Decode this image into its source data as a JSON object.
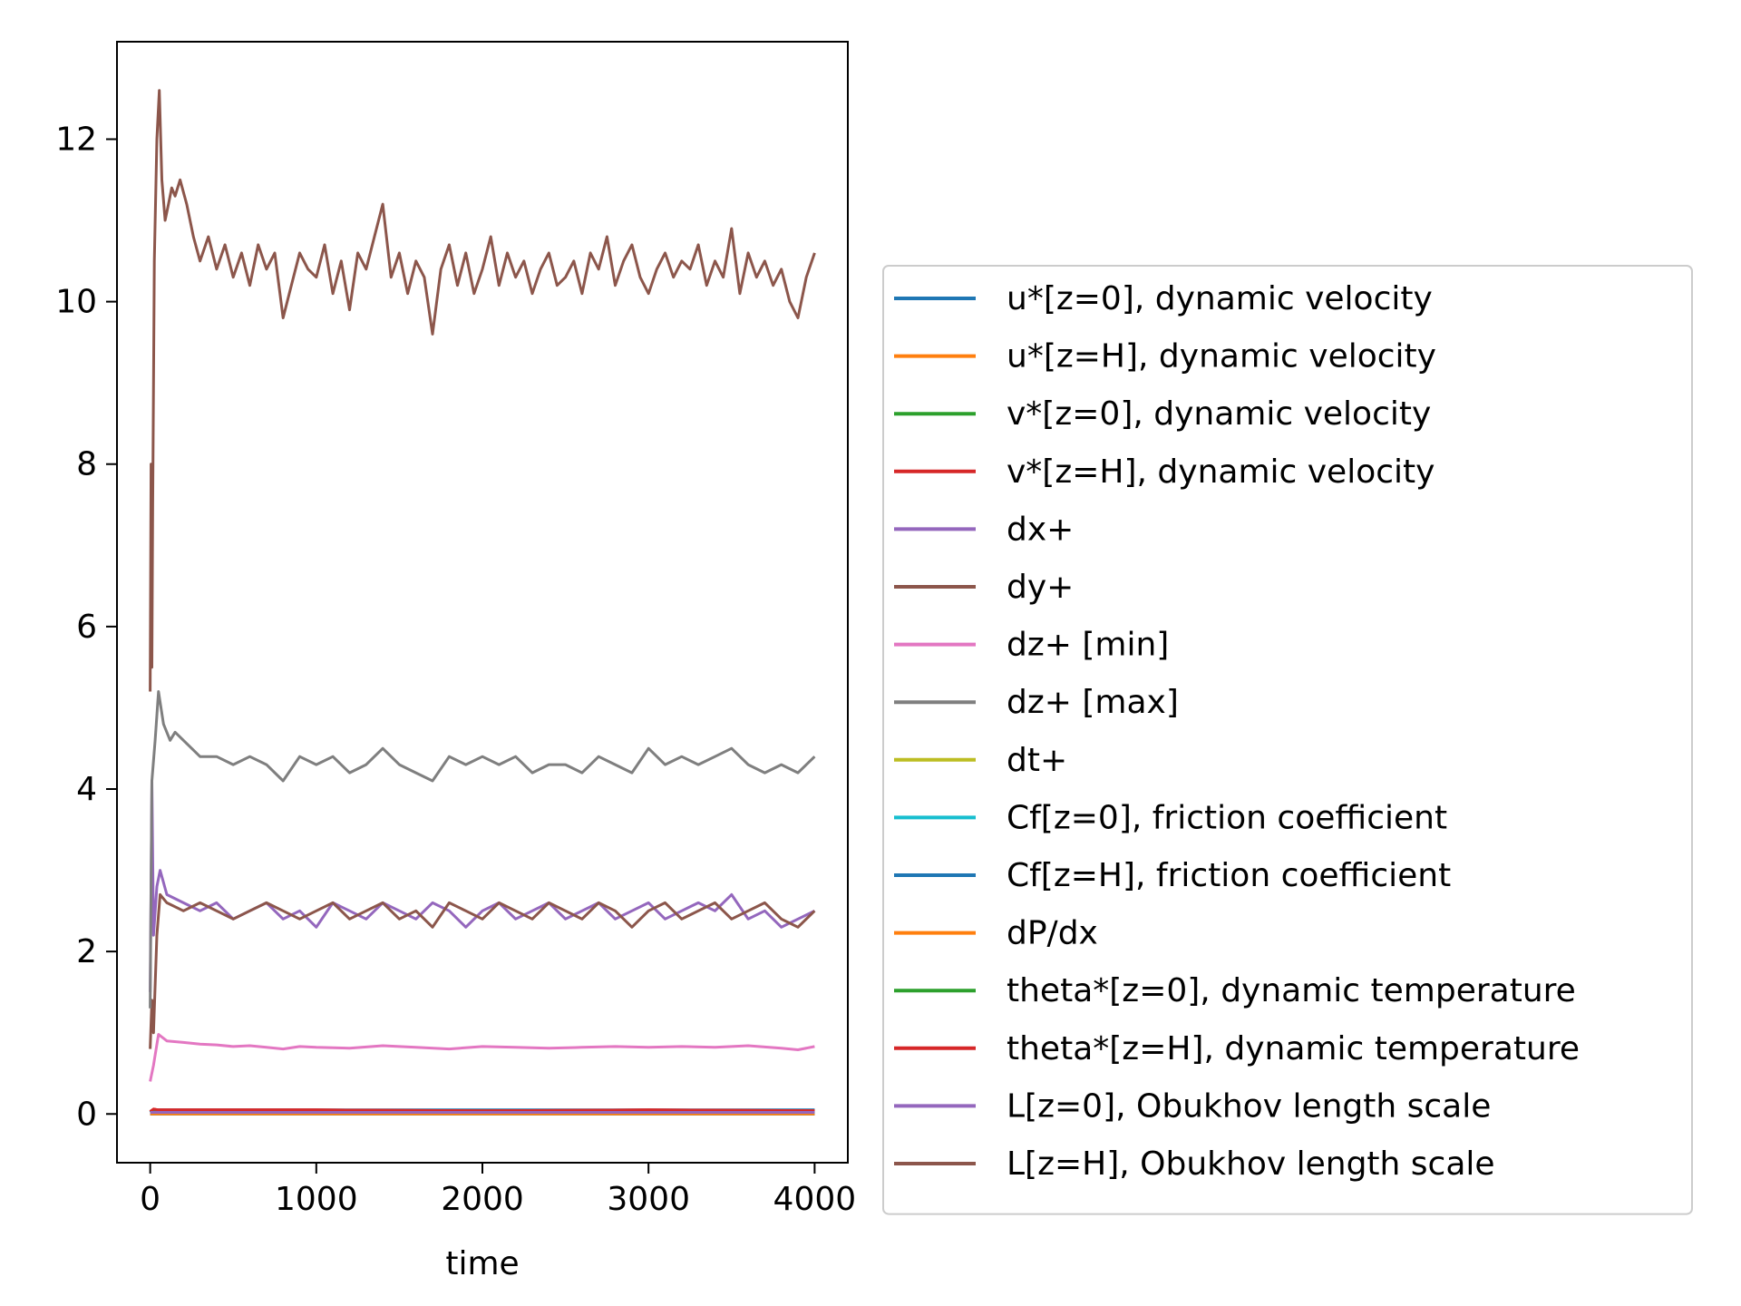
{
  "chart_data": {
    "type": "line",
    "xlabel": "time",
    "ylabel": "",
    "title": "",
    "xlim": [
      -200,
      4200
    ],
    "ylim": [
      -0.6,
      13.2
    ],
    "xticks": [
      0,
      1000,
      2000,
      3000,
      4000
    ],
    "yticks": [
      0,
      2,
      4,
      6,
      8,
      10,
      12
    ],
    "grid": false,
    "legend_position": "center-right outside",
    "series": [
      {
        "name": "u*[z=0], dynamic velocity",
        "color": "#1f77b4",
        "x": [
          0,
          20,
          50,
          500,
          1000,
          2000,
          3000,
          4000
        ],
        "y": [
          0.02,
          0.05,
          0.05,
          0.05,
          0.05,
          0.05,
          0.05,
          0.05
        ]
      },
      {
        "name": "u*[z=H], dynamic velocity",
        "color": "#ff7f0e",
        "x": [
          0,
          20,
          50,
          500,
          1000,
          2000,
          3000,
          4000
        ],
        "y": [
          0.0,
          0.0,
          0.0,
          0.0,
          0.0,
          0.0,
          0.0,
          0.0
        ]
      },
      {
        "name": "v*[z=0], dynamic velocity",
        "color": "#2ca02c",
        "x": [
          0,
          20,
          50,
          500,
          1000,
          2000,
          3000,
          4000
        ],
        "y": [
          0.02,
          0.04,
          0.04,
          0.04,
          0.04,
          0.04,
          0.04,
          0.04
        ]
      },
      {
        "name": "v*[z=H], dynamic velocity",
        "color": "#d62728",
        "x": [
          0,
          20,
          50,
          500,
          1000,
          2000,
          3000,
          4000
        ],
        "y": [
          0.03,
          0.06,
          0.05,
          0.05,
          0.05,
          0.04,
          0.05,
          0.04
        ]
      },
      {
        "name": "dx+",
        "color": "#9467bd",
        "x": [
          0,
          10,
          20,
          40,
          60,
          100,
          200,
          300,
          400,
          500,
          600,
          700,
          800,
          900,
          1000,
          1100,
          1200,
          1300,
          1400,
          1500,
          1600,
          1700,
          1800,
          1900,
          2000,
          2100,
          2200,
          2300,
          2400,
          2500,
          2600,
          2700,
          2800,
          2900,
          3000,
          3100,
          3200,
          3300,
          3400,
          3500,
          3600,
          3700,
          3800,
          3900,
          4000
        ],
        "y": [
          1.5,
          4.1,
          2.2,
          2.8,
          3.0,
          2.7,
          2.6,
          2.5,
          2.6,
          2.4,
          2.5,
          2.6,
          2.4,
          2.5,
          2.3,
          2.6,
          2.5,
          2.4,
          2.6,
          2.5,
          2.4,
          2.6,
          2.5,
          2.3,
          2.5,
          2.6,
          2.4,
          2.5,
          2.6,
          2.4,
          2.5,
          2.6,
          2.4,
          2.5,
          2.6,
          2.4,
          2.5,
          2.6,
          2.5,
          2.7,
          2.4,
          2.5,
          2.3,
          2.4,
          2.5
        ]
      },
      {
        "name": "dy+",
        "color": "#8c564b",
        "x": [
          0,
          10,
          20,
          40,
          60,
          100,
          200,
          300,
          400,
          500,
          600,
          700,
          800,
          900,
          1000,
          1100,
          1200,
          1300,
          1400,
          1500,
          1600,
          1700,
          1800,
          1900,
          2000,
          2100,
          2200,
          2300,
          2400,
          2500,
          2600,
          2700,
          2800,
          2900,
          3000,
          3100,
          3200,
          3300,
          3400,
          3500,
          3600,
          3700,
          3800,
          3900,
          4000
        ],
        "y": [
          0.8,
          1.4,
          1.0,
          2.2,
          2.7,
          2.6,
          2.5,
          2.6,
          2.5,
          2.4,
          2.5,
          2.6,
          2.5,
          2.4,
          2.5,
          2.6,
          2.4,
          2.5,
          2.6,
          2.4,
          2.5,
          2.3,
          2.6,
          2.5,
          2.4,
          2.6,
          2.5,
          2.4,
          2.6,
          2.5,
          2.4,
          2.6,
          2.5,
          2.3,
          2.5,
          2.6,
          2.4,
          2.5,
          2.6,
          2.4,
          2.5,
          2.6,
          2.4,
          2.3,
          2.5
        ]
      },
      {
        "name": "dz+ [min]",
        "color": "#e377c2",
        "x": [
          0,
          20,
          50,
          100,
          200,
          300,
          400,
          500,
          600,
          700,
          800,
          900,
          1000,
          1200,
          1400,
          1600,
          1800,
          2000,
          2200,
          2400,
          2600,
          2800,
          3000,
          3200,
          3400,
          3600,
          3800,
          3900,
          4000
        ],
        "y": [
          0.4,
          0.6,
          0.98,
          0.9,
          0.88,
          0.86,
          0.85,
          0.83,
          0.84,
          0.82,
          0.8,
          0.83,
          0.82,
          0.81,
          0.84,
          0.82,
          0.8,
          0.83,
          0.82,
          0.81,
          0.82,
          0.83,
          0.82,
          0.83,
          0.82,
          0.84,
          0.81,
          0.79,
          0.83
        ]
      },
      {
        "name": "dz+ [max]",
        "color": "#7f7f7f",
        "x": [
          0,
          10,
          30,
          50,
          80,
          120,
          150,
          200,
          250,
          300,
          400,
          500,
          600,
          700,
          800,
          900,
          1000,
          1100,
          1200,
          1300,
          1400,
          1500,
          1600,
          1700,
          1800,
          1900,
          2000,
          2100,
          2200,
          2300,
          2400,
          2500,
          2600,
          2700,
          2800,
          2900,
          3000,
          3100,
          3200,
          3300,
          3400,
          3500,
          3600,
          3700,
          3800,
          3900,
          4000
        ],
        "y": [
          1.3,
          4.1,
          4.6,
          5.2,
          4.8,
          4.6,
          4.7,
          4.6,
          4.5,
          4.4,
          4.4,
          4.3,
          4.4,
          4.3,
          4.1,
          4.4,
          4.3,
          4.4,
          4.2,
          4.3,
          4.5,
          4.3,
          4.2,
          4.1,
          4.4,
          4.3,
          4.4,
          4.3,
          4.4,
          4.2,
          4.3,
          4.3,
          4.2,
          4.4,
          4.3,
          4.2,
          4.5,
          4.3,
          4.4,
          4.3,
          4.4,
          4.5,
          4.3,
          4.2,
          4.3,
          4.2,
          4.4
        ]
      },
      {
        "name": "dt+",
        "color": "#bcbd22",
        "x": [
          0,
          1000,
          2000,
          3000,
          4000
        ],
        "y": [
          0.01,
          0.01,
          0.01,
          0.01,
          0.01
        ]
      },
      {
        "name": "Cf[z=0], friction coefficient",
        "color": "#17becf",
        "x": [
          0,
          1000,
          2000,
          3000,
          4000
        ],
        "y": [
          0.0,
          0.0,
          0.0,
          0.0,
          0.0
        ]
      },
      {
        "name": "Cf[z=H], friction coefficient",
        "color": "#1f77b4",
        "x": [
          0,
          1000,
          2000,
          3000,
          4000
        ],
        "y": [
          0.0,
          0.0,
          0.0,
          0.0,
          0.0
        ]
      },
      {
        "name": "dP/dx",
        "color": "#ff7f0e",
        "x": [
          0,
          1000,
          2000,
          3000,
          4000
        ],
        "y": [
          0.0,
          0.0,
          0.0,
          0.0,
          0.0
        ]
      },
      {
        "name": "theta*[z=0], dynamic temperature",
        "color": "#2ca02c",
        "x": [
          0,
          1000,
          2000,
          3000,
          4000
        ],
        "y": [
          0.03,
          0.03,
          0.03,
          0.03,
          0.03
        ]
      },
      {
        "name": "theta*[z=H], dynamic temperature",
        "color": "#d62728",
        "x": [
          0,
          20,
          50,
          1000,
          2000,
          3000,
          4000
        ],
        "y": [
          0.03,
          0.06,
          0.05,
          0.05,
          0.04,
          0.05,
          0.04
        ]
      },
      {
        "name": "L[z=0], Obukhov length scale",
        "color": "#9467bd",
        "x": [
          0,
          1000,
          2000,
          3000,
          4000
        ],
        "y": [
          0.02,
          0.02,
          0.02,
          0.02,
          0.02
        ]
      },
      {
        "name": "L[z=H], Obukhov length scale",
        "color": "#8c564b",
        "x": [
          0,
          5,
          10,
          15,
          25,
          40,
          55,
          70,
          90,
          110,
          130,
          150,
          180,
          220,
          260,
          300,
          350,
          400,
          450,
          500,
          550,
          600,
          650,
          700,
          750,
          800,
          850,
          900,
          950,
          1000,
          1050,
          1100,
          1150,
          1200,
          1250,
          1300,
          1350,
          1400,
          1450,
          1500,
          1550,
          1600,
          1650,
          1700,
          1750,
          1800,
          1850,
          1900,
          1950,
          2000,
          2050,
          2100,
          2150,
          2200,
          2250,
          2300,
          2350,
          2400,
          2450,
          2500,
          2550,
          2600,
          2650,
          2700,
          2750,
          2800,
          2850,
          2900,
          2950,
          3000,
          3050,
          3100,
          3150,
          3200,
          3250,
          3300,
          3350,
          3400,
          3450,
          3500,
          3550,
          3600,
          3650,
          3700,
          3750,
          3800,
          3850,
          3900,
          3950,
          4000
        ],
        "y": [
          5.2,
          8.0,
          5.5,
          7.5,
          10.5,
          12.0,
          12.6,
          11.5,
          11.0,
          11.2,
          11.4,
          11.3,
          11.5,
          11.2,
          10.8,
          10.5,
          10.8,
          10.4,
          10.7,
          10.3,
          10.6,
          10.2,
          10.7,
          10.4,
          10.6,
          9.8,
          10.2,
          10.6,
          10.4,
          10.3,
          10.7,
          10.1,
          10.5,
          9.9,
          10.6,
          10.4,
          10.8,
          11.2,
          10.3,
          10.6,
          10.1,
          10.5,
          10.3,
          9.6,
          10.4,
          10.7,
          10.2,
          10.6,
          10.1,
          10.4,
          10.8,
          10.2,
          10.6,
          10.3,
          10.5,
          10.1,
          10.4,
          10.6,
          10.2,
          10.3,
          10.5,
          10.1,
          10.6,
          10.4,
          10.8,
          10.2,
          10.5,
          10.7,
          10.3,
          10.1,
          10.4,
          10.6,
          10.3,
          10.5,
          10.4,
          10.7,
          10.2,
          10.5,
          10.3,
          10.9,
          10.1,
          10.6,
          10.3,
          10.5,
          10.2,
          10.4,
          10.0,
          9.8,
          10.3,
          10.6
        ]
      }
    ]
  }
}
